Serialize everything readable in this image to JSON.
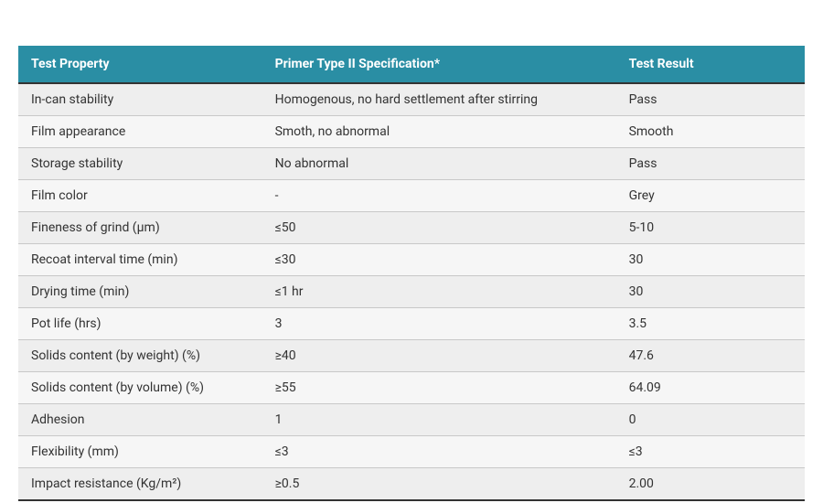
{
  "table": {
    "header_bg": "#2a8ea4",
    "header_color": "#ffffff",
    "row_odd_bg": "#eeeeee",
    "row_even_bg": "#f6f6f6",
    "columns": [
      "Test Property",
      "Primer Type II Specification*",
      "Test Result"
    ],
    "rows": [
      {
        "prop": "In-can stability",
        "spec": "Homogenous, no hard settlement after stirring",
        "res": "Pass"
      },
      {
        "prop": "Film appearance",
        "spec": "Smoth, no abnormal",
        "res": "Smooth"
      },
      {
        "prop": "Storage stability",
        "spec": "No abnormal",
        "res": "Pass"
      },
      {
        "prop": "Film color",
        "spec": "-",
        "res": "Grey"
      },
      {
        "prop": "Fineness of grind (µm)",
        "spec": "≤50",
        "res": "5-10"
      },
      {
        "prop": "Recoat interval time (min)",
        "spec": "≤30",
        "res": "30"
      },
      {
        "prop": "Drying time (min)",
        "spec": "≤1 hr",
        "res": "30"
      },
      {
        "prop": "Pot life (hrs)",
        "spec": "3",
        "res": "3.5"
      },
      {
        "prop": "Solids content (by weight) (%)",
        "spec": "≥40",
        "res": "47.6"
      },
      {
        "prop": "Solids content (by volume) (%)",
        "spec": "≥55",
        "res": "64.09"
      },
      {
        "prop": "Adhesion",
        "spec": "1",
        "res": "0"
      },
      {
        "prop": "Flexibility (mm)",
        "spec": "≤3",
        "res": "≤3"
      },
      {
        "prop": "Impact resistance (Kg/m²)",
        "spec": "≥0.5",
        "res": "2.00"
      }
    ]
  }
}
